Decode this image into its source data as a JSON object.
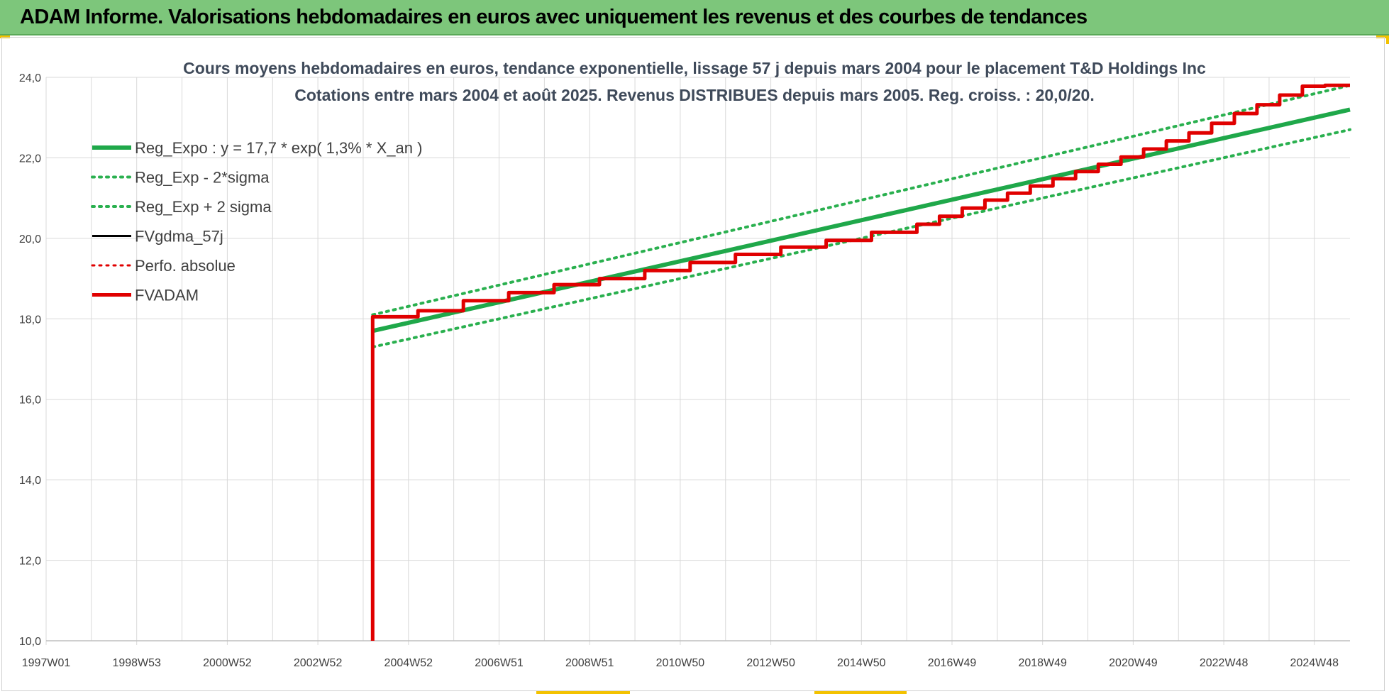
{
  "header": {
    "title": "ADAM Informe. Valorisations hebdomadaires en euros avec uniquement les revenus et des courbes de tendances"
  },
  "colors": {
    "banner": "#7dc67b",
    "green": "#1fa84a",
    "green_dotted": "#2ab04f",
    "black": "#000000",
    "red": "#e00000",
    "grid": "#d9d9d9"
  },
  "chart_data": {
    "type": "line",
    "title_lines": [
      "Cours moyens hebdomadaires en euros, tendance exponentielle, lissage 57 j depuis mars 2004 pour le placement T&D Holdings Inc",
      "Cotations entre mars 2004 et août 2025. Revenus DISTRIBUES depuis mars 2005. Reg. croiss. : 20,0/20."
    ],
    "x_tick_labels": [
      "1997W01",
      "1998W53",
      "2000W52",
      "2002W52",
      "2004W52",
      "2006W51",
      "2008W51",
      "2010W50",
      "2012W50",
      "2014W50",
      "2016W49",
      "2018W49",
      "2020W49",
      "2022W48",
      "2024W48"
    ],
    "xlim": [
      1997.0,
      2025.75
    ],
    "ylim": [
      10.0,
      24.0
    ],
    "y_tick_values": [
      10,
      12,
      14,
      16,
      18,
      20,
      22,
      24
    ],
    "y_tick_labels": [
      "10,0",
      "12,0",
      "14,0",
      "16,0",
      "18,0",
      "20,0",
      "22,0",
      "24,0"
    ],
    "grid": true,
    "legend_position": "top-left",
    "series": [
      {
        "name": "Reg_Expo : y = 17,7 * exp( 1,3% *  X_an )",
        "color": "#1fa84a",
        "style": "solid",
        "width": 6,
        "x": [
          2004.2,
          2025.75
        ],
        "y": [
          17.7,
          23.2
        ]
      },
      {
        "name": "Reg_Exp - 2*sigma",
        "color": "#2ab04f",
        "style": "dotted",
        "width": 4,
        "x": [
          2004.2,
          2025.75
        ],
        "y": [
          17.3,
          22.7
        ]
      },
      {
        "name": "Reg_Exp + 2 sigma",
        "color": "#2ab04f",
        "style": "dotted",
        "width": 4,
        "x": [
          2004.2,
          2025.75
        ],
        "y": [
          18.1,
          23.8
        ]
      },
      {
        "name": "FVgdma_57j",
        "color": "#000000",
        "style": "solid",
        "width": 3,
        "x": [
          2004.2,
          2005.2,
          2005.2,
          2006.2,
          2006.2,
          2007.2,
          2007.2,
          2008.2,
          2008.2,
          2009.2,
          2009.2,
          2010.2,
          2010.2,
          2011.2,
          2011.2,
          2012.2,
          2012.2,
          2013.2,
          2013.2,
          2014.2,
          2014.2,
          2015.2,
          2015.2,
          2016.2,
          2016.2,
          2016.7,
          2016.7,
          2017.2,
          2017.2,
          2017.7,
          2017.7,
          2018.2,
          2018.2,
          2018.7,
          2018.7,
          2019.2,
          2019.2,
          2019.7,
          2019.7,
          2020.2,
          2020.2,
          2020.7,
          2020.7,
          2021.2,
          2021.2,
          2021.7,
          2021.7,
          2022.2,
          2022.2,
          2022.7,
          2022.7,
          2023.2,
          2023.2,
          2023.7,
          2023.7,
          2024.2,
          2024.2,
          2024.7,
          2024.7,
          2025.2,
          2025.2,
          2025.75
        ],
        "y": [
          18.05,
          18.05,
          18.2,
          18.2,
          18.45,
          18.45,
          18.65,
          18.65,
          18.85,
          18.85,
          19.0,
          19.0,
          19.2,
          19.2,
          19.4,
          19.4,
          19.6,
          19.6,
          19.78,
          19.78,
          19.95,
          19.95,
          20.15,
          20.15,
          20.35,
          20.35,
          20.55,
          20.55,
          20.75,
          20.75,
          20.95,
          20.95,
          21.12,
          21.12,
          21.3,
          21.3,
          21.48,
          21.48,
          21.66,
          21.66,
          21.84,
          21.84,
          22.02,
          22.02,
          22.22,
          22.22,
          22.42,
          22.42,
          22.62,
          22.62,
          22.86,
          22.86,
          23.1,
          23.1,
          23.32,
          23.32,
          23.56,
          23.56,
          23.78,
          23.78,
          23.8,
          23.8
        ]
      },
      {
        "name": "Perfo. absolue",
        "color": "#e00000",
        "style": "dotted",
        "width": 3,
        "x": [],
        "y": []
      },
      {
        "name": "FVADAM",
        "color": "#e00000",
        "style": "solid",
        "width": 5,
        "x": [
          2004.2,
          2004.2,
          2005.2,
          2005.2,
          2006.2,
          2006.2,
          2007.2,
          2007.2,
          2008.2,
          2008.2,
          2009.2,
          2009.2,
          2010.2,
          2010.2,
          2011.2,
          2011.2,
          2012.2,
          2012.2,
          2013.2,
          2013.2,
          2014.2,
          2014.2,
          2015.2,
          2015.2,
          2016.2,
          2016.2,
          2016.7,
          2016.7,
          2017.2,
          2017.2,
          2017.7,
          2017.7,
          2018.2,
          2018.2,
          2018.7,
          2018.7,
          2019.2,
          2019.2,
          2019.7,
          2019.7,
          2020.2,
          2020.2,
          2020.7,
          2020.7,
          2021.2,
          2021.2,
          2021.7,
          2021.7,
          2022.2,
          2022.2,
          2022.7,
          2022.7,
          2023.2,
          2023.2,
          2023.7,
          2023.7,
          2024.2,
          2024.2,
          2024.7,
          2024.7,
          2025.2,
          2025.2,
          2025.75
        ],
        "y": [
          10.0,
          18.05,
          18.05,
          18.2,
          18.2,
          18.45,
          18.45,
          18.65,
          18.65,
          18.85,
          18.85,
          19.0,
          19.0,
          19.2,
          19.2,
          19.4,
          19.4,
          19.6,
          19.6,
          19.78,
          19.78,
          19.95,
          19.95,
          20.15,
          20.15,
          20.35,
          20.35,
          20.55,
          20.55,
          20.75,
          20.75,
          20.95,
          20.95,
          21.12,
          21.12,
          21.3,
          21.3,
          21.48,
          21.48,
          21.66,
          21.66,
          21.84,
          21.84,
          22.02,
          22.02,
          22.22,
          22.22,
          22.42,
          22.42,
          22.62,
          22.62,
          22.86,
          22.86,
          23.1,
          23.1,
          23.32,
          23.32,
          23.56,
          23.56,
          23.78,
          23.78,
          23.8,
          23.8
        ]
      }
    ]
  }
}
